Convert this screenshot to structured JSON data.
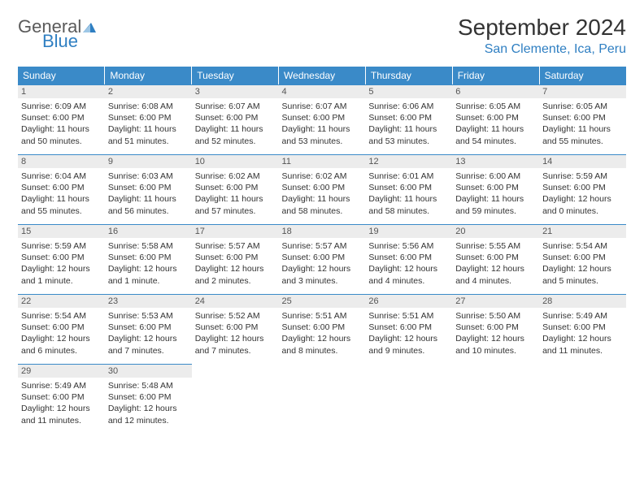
{
  "logo": {
    "line1": "General",
    "line2": "Blue"
  },
  "title": "September 2024",
  "location": "San Clemente, Ica, Peru",
  "colors": {
    "header_bg": "#3a8ac8",
    "header_fg": "#ffffff",
    "daynum_bg": "#ececec",
    "daynum_border": "#3a8ac8",
    "accent": "#2f7fc2",
    "text": "#333333",
    "logo_gray": "#5a5a5a"
  },
  "weekdays": [
    "Sunday",
    "Monday",
    "Tuesday",
    "Wednesday",
    "Thursday",
    "Friday",
    "Saturday"
  ],
  "weeks": [
    [
      {
        "n": "1",
        "sr": "6:09 AM",
        "ss": "6:00 PM",
        "dl": "11 hours and 50 minutes."
      },
      {
        "n": "2",
        "sr": "6:08 AM",
        "ss": "6:00 PM",
        "dl": "11 hours and 51 minutes."
      },
      {
        "n": "3",
        "sr": "6:07 AM",
        "ss": "6:00 PM",
        "dl": "11 hours and 52 minutes."
      },
      {
        "n": "4",
        "sr": "6:07 AM",
        "ss": "6:00 PM",
        "dl": "11 hours and 53 minutes."
      },
      {
        "n": "5",
        "sr": "6:06 AM",
        "ss": "6:00 PM",
        "dl": "11 hours and 53 minutes."
      },
      {
        "n": "6",
        "sr": "6:05 AM",
        "ss": "6:00 PM",
        "dl": "11 hours and 54 minutes."
      },
      {
        "n": "7",
        "sr": "6:05 AM",
        "ss": "6:00 PM",
        "dl": "11 hours and 55 minutes."
      }
    ],
    [
      {
        "n": "8",
        "sr": "6:04 AM",
        "ss": "6:00 PM",
        "dl": "11 hours and 55 minutes."
      },
      {
        "n": "9",
        "sr": "6:03 AM",
        "ss": "6:00 PM",
        "dl": "11 hours and 56 minutes."
      },
      {
        "n": "10",
        "sr": "6:02 AM",
        "ss": "6:00 PM",
        "dl": "11 hours and 57 minutes."
      },
      {
        "n": "11",
        "sr": "6:02 AM",
        "ss": "6:00 PM",
        "dl": "11 hours and 58 minutes."
      },
      {
        "n": "12",
        "sr": "6:01 AM",
        "ss": "6:00 PM",
        "dl": "11 hours and 58 minutes."
      },
      {
        "n": "13",
        "sr": "6:00 AM",
        "ss": "6:00 PM",
        "dl": "11 hours and 59 minutes."
      },
      {
        "n": "14",
        "sr": "5:59 AM",
        "ss": "6:00 PM",
        "dl": "12 hours and 0 minutes."
      }
    ],
    [
      {
        "n": "15",
        "sr": "5:59 AM",
        "ss": "6:00 PM",
        "dl": "12 hours and 1 minute."
      },
      {
        "n": "16",
        "sr": "5:58 AM",
        "ss": "6:00 PM",
        "dl": "12 hours and 1 minute."
      },
      {
        "n": "17",
        "sr": "5:57 AM",
        "ss": "6:00 PM",
        "dl": "12 hours and 2 minutes."
      },
      {
        "n": "18",
        "sr": "5:57 AM",
        "ss": "6:00 PM",
        "dl": "12 hours and 3 minutes."
      },
      {
        "n": "19",
        "sr": "5:56 AM",
        "ss": "6:00 PM",
        "dl": "12 hours and 4 minutes."
      },
      {
        "n": "20",
        "sr": "5:55 AM",
        "ss": "6:00 PM",
        "dl": "12 hours and 4 minutes."
      },
      {
        "n": "21",
        "sr": "5:54 AM",
        "ss": "6:00 PM",
        "dl": "12 hours and 5 minutes."
      }
    ],
    [
      {
        "n": "22",
        "sr": "5:54 AM",
        "ss": "6:00 PM",
        "dl": "12 hours and 6 minutes."
      },
      {
        "n": "23",
        "sr": "5:53 AM",
        "ss": "6:00 PM",
        "dl": "12 hours and 7 minutes."
      },
      {
        "n": "24",
        "sr": "5:52 AM",
        "ss": "6:00 PM",
        "dl": "12 hours and 7 minutes."
      },
      {
        "n": "25",
        "sr": "5:51 AM",
        "ss": "6:00 PM",
        "dl": "12 hours and 8 minutes."
      },
      {
        "n": "26",
        "sr": "5:51 AM",
        "ss": "6:00 PM",
        "dl": "12 hours and 9 minutes."
      },
      {
        "n": "27",
        "sr": "5:50 AM",
        "ss": "6:00 PM",
        "dl": "12 hours and 10 minutes."
      },
      {
        "n": "28",
        "sr": "5:49 AM",
        "ss": "6:00 PM",
        "dl": "12 hours and 11 minutes."
      }
    ],
    [
      {
        "n": "29",
        "sr": "5:49 AM",
        "ss": "6:00 PM",
        "dl": "12 hours and 11 minutes."
      },
      {
        "n": "30",
        "sr": "5:48 AM",
        "ss": "6:00 PM",
        "dl": "12 hours and 12 minutes."
      },
      null,
      null,
      null,
      null,
      null
    ]
  ],
  "labels": {
    "sunrise": "Sunrise:",
    "sunset": "Sunset:",
    "daylight": "Daylight:"
  }
}
